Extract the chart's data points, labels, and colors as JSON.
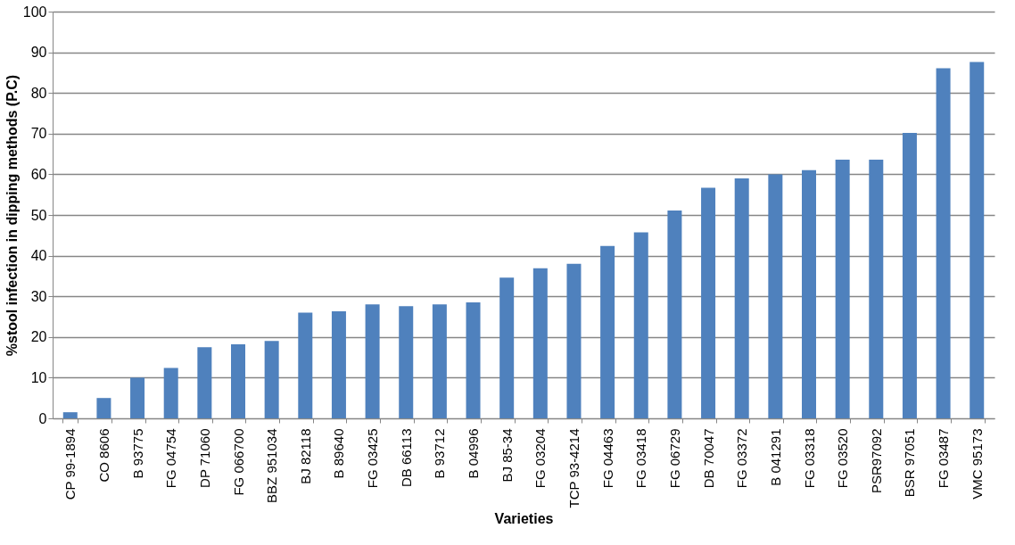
{
  "chart_data": {
    "type": "bar",
    "xlabel": "Varieties",
    "ylabel": "%stool infection in dipping methods (P.C)",
    "categories": [
      "CP 99-1894",
      "CO 8606",
      "B 93775",
      "FG 04754",
      "DP 71060",
      "FG 066700",
      "BBZ 951034",
      "BJ 82118",
      "B 89640",
      "FG 03425",
      "DB 66113",
      "B 93712",
      "B 04996",
      "BJ 85-34",
      "FG 03204",
      "TCP 93-4214",
      "FG 04463",
      "FG 03418",
      "FG 06729",
      "DB 70047",
      "FG 03372",
      "B 041291",
      "FG 03318",
      "FG 03520",
      "PSR97092",
      "BSR 97051",
      "FG 03487",
      "VMC 95173"
    ],
    "values": [
      1.5,
      5,
      10,
      12.4,
      17.5,
      18.2,
      19,
      26,
      26.3,
      28,
      27.6,
      28,
      28.5,
      34.6,
      36.9,
      38,
      42.4,
      45.7,
      51.1,
      56.7,
      59,
      60,
      61,
      63.6,
      63.6,
      70.2,
      86.1,
      87.6
    ],
    "color": "#4f81bd",
    "ylim": [
      0,
      100
    ],
    "yticks": [
      0,
      10,
      20,
      30,
      40,
      50,
      60,
      70,
      80,
      90,
      100
    ],
    "grid": "y"
  }
}
